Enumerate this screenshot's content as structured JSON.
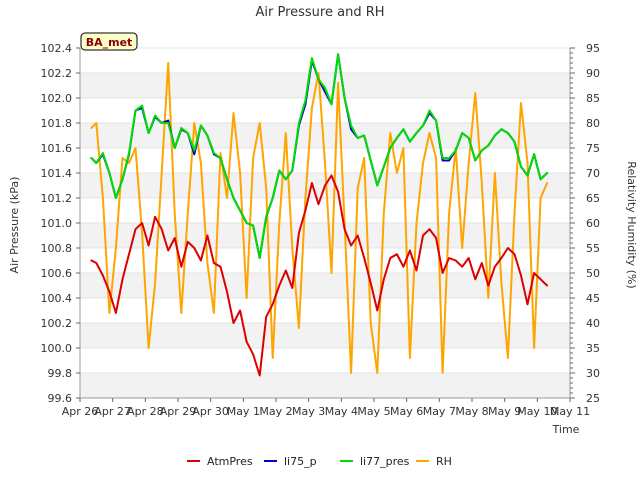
{
  "chart_data": {
    "type": "line",
    "title": "Air Pressure and RH",
    "xlabel": "Time",
    "ylabel": "Air Pressure (kPa)",
    "y2label": "Relativity Humidity (%)",
    "site_label": "BA_met",
    "x_ticks": [
      "Apr 26",
      "Apr 27",
      "Apr 28",
      "Apr 29",
      "Apr 30",
      "May 1",
      "May 2",
      "May 3",
      "May 4",
      "May 5",
      "May 6",
      "May 7",
      "May 8",
      "May 9",
      "May 10",
      "May 11"
    ],
    "ylim": [
      99.6,
      102.4
    ],
    "y_ticks": [
      "99.6",
      "99.8",
      "100.0",
      "100.2",
      "100.4",
      "100.6",
      "100.8",
      "101.0",
      "101.2",
      "101.4",
      "101.6",
      "101.8",
      "102.0",
      "102.2",
      "102.4"
    ],
    "y2lim": [
      25,
      95
    ],
    "y2_ticks": [
      "25",
      "30",
      "35",
      "40",
      "45",
      "50",
      "55",
      "60",
      "65",
      "70",
      "75",
      "80",
      "85",
      "90",
      "95"
    ],
    "grid": true,
    "legend_position": "bottom",
    "series": [
      {
        "name": "AtmPres",
        "axis": "left",
        "color": "#dd0000",
        "x": [
          0.35,
          0.5,
          0.7,
          0.9,
          1.1,
          1.3,
          1.5,
          1.7,
          1.9,
          2.1,
          2.3,
          2.5,
          2.7,
          2.9,
          3.1,
          3.3,
          3.5,
          3.7,
          3.9,
          4.1,
          4.3,
          4.5,
          4.7,
          4.9,
          5.1,
          5.3,
          5.5,
          5.7,
          5.9,
          6.1,
          6.3,
          6.5,
          6.7,
          6.9,
          7.1,
          7.3,
          7.5,
          7.7,
          7.9,
          8.1,
          8.3,
          8.5,
          8.7,
          8.9,
          9.1,
          9.3,
          9.5,
          9.7,
          9.9,
          10.1,
          10.3,
          10.5,
          10.7,
          10.9,
          11.1,
          11.3,
          11.5,
          11.7,
          11.9,
          12.1,
          12.3,
          12.5,
          12.7,
          12.9,
          13.1,
          13.3,
          13.5,
          13.7,
          13.9,
          14.1,
          14.3
        ],
        "y": [
          100.7,
          100.68,
          100.58,
          100.45,
          100.28,
          100.55,
          100.75,
          100.95,
          101.0,
          100.82,
          101.05,
          100.95,
          100.78,
          100.88,
          100.65,
          100.85,
          100.8,
          100.7,
          100.9,
          100.68,
          100.65,
          100.45,
          100.2,
          100.3,
          100.05,
          99.95,
          99.78,
          100.25,
          100.35,
          100.5,
          100.62,
          100.48,
          100.92,
          101.1,
          101.32,
          101.15,
          101.3,
          101.38,
          101.25,
          100.95,
          100.82,
          100.9,
          100.72,
          100.52,
          100.3,
          100.55,
          100.72,
          100.75,
          100.65,
          100.78,
          100.62,
          100.9,
          100.95,
          100.88,
          100.6,
          100.72,
          100.7,
          100.65,
          100.72,
          100.55,
          100.68,
          100.5,
          100.65,
          100.72,
          100.8,
          100.75,
          100.58,
          100.35,
          100.6,
          100.55,
          100.5
        ]
      },
      {
        "name": "li75_p",
        "axis": "left",
        "color": "#0000cc",
        "x": [
          0.35,
          0.5,
          0.7,
          0.9,
          1.1,
          1.3,
          1.5,
          1.7,
          1.9,
          2.1,
          2.3,
          2.5,
          2.7,
          2.9,
          3.1,
          3.3,
          3.5,
          3.7,
          3.9,
          4.1,
          4.3,
          4.5,
          4.7,
          4.9,
          5.1,
          5.3,
          5.5,
          5.7,
          5.9,
          6.1,
          6.3,
          6.5,
          6.7,
          6.9,
          7.1,
          7.3,
          7.5,
          7.7,
          7.9,
          8.1,
          8.3,
          8.5,
          8.7,
          8.9,
          9.1,
          9.3,
          9.5,
          9.7,
          9.9,
          10.1,
          10.3,
          10.5,
          10.7,
          10.9,
          11.1,
          11.3,
          11.5,
          11.7,
          11.9,
          12.1,
          12.3,
          12.5,
          12.7,
          12.9,
          13.1,
          13.3,
          13.5,
          13.7,
          13.9,
          14.1,
          14.3
        ],
        "y": [
          101.52,
          101.48,
          101.55,
          101.4,
          101.2,
          101.35,
          101.55,
          101.9,
          101.92,
          101.72,
          101.85,
          101.8,
          101.82,
          101.6,
          101.75,
          101.72,
          101.55,
          101.78,
          101.7,
          101.55,
          101.52,
          101.35,
          101.2,
          101.1,
          101.0,
          100.98,
          100.72,
          101.05,
          101.2,
          101.42,
          101.35,
          101.42,
          101.78,
          101.95,
          102.3,
          102.15,
          102.05,
          101.95,
          102.35,
          102.0,
          101.75,
          101.68,
          101.7,
          101.5,
          101.3,
          101.45,
          101.6,
          101.68,
          101.75,
          101.65,
          101.72,
          101.78,
          101.88,
          101.82,
          101.5,
          101.5,
          101.58,
          101.72,
          101.68,
          101.5,
          101.58,
          101.62,
          101.7,
          101.75,
          101.72,
          101.65,
          101.45,
          101.38,
          101.55,
          101.35,
          101.4
        ]
      },
      {
        "name": "li77_pres",
        "axis": "left",
        "color": "#00dd00",
        "x": [
          0.35,
          0.5,
          0.7,
          0.9,
          1.1,
          1.3,
          1.5,
          1.7,
          1.9,
          2.1,
          2.3,
          2.5,
          2.7,
          2.9,
          3.1,
          3.3,
          3.5,
          3.7,
          3.9,
          4.1,
          4.3,
          4.5,
          4.7,
          4.9,
          5.1,
          5.3,
          5.5,
          5.7,
          5.9,
          6.1,
          6.3,
          6.5,
          6.7,
          6.9,
          7.1,
          7.3,
          7.5,
          7.7,
          7.9,
          8.1,
          8.3,
          8.5,
          8.7,
          8.9,
          9.1,
          9.3,
          9.5,
          9.7,
          9.9,
          10.1,
          10.3,
          10.5,
          10.7,
          10.9,
          11.1,
          11.3,
          11.5,
          11.7,
          11.9,
          12.1,
          12.3,
          12.5,
          12.7,
          12.9,
          13.1,
          13.3,
          13.5,
          13.7,
          13.9,
          14.1,
          14.3
        ],
        "y": [
          101.52,
          101.48,
          101.56,
          101.4,
          101.2,
          101.35,
          101.56,
          101.9,
          101.94,
          101.72,
          101.86,
          101.8,
          101.8,
          101.6,
          101.76,
          101.72,
          101.58,
          101.78,
          101.7,
          101.56,
          101.52,
          101.35,
          101.2,
          101.1,
          101.0,
          100.98,
          100.72,
          101.05,
          101.2,
          101.42,
          101.35,
          101.42,
          101.8,
          101.98,
          102.32,
          102.15,
          102.08,
          101.95,
          102.35,
          102.0,
          101.78,
          101.68,
          101.7,
          101.5,
          101.3,
          101.45,
          101.6,
          101.68,
          101.75,
          101.65,
          101.72,
          101.78,
          101.9,
          101.82,
          101.52,
          101.52,
          101.58,
          101.72,
          101.68,
          101.5,
          101.58,
          101.62,
          101.7,
          101.75,
          101.72,
          101.65,
          101.45,
          101.38,
          101.55,
          101.35,
          101.4
        ]
      },
      {
        "name": "RH",
        "axis": "right",
        "color": "#ffa500",
        "x": [
          0.35,
          0.5,
          0.7,
          0.9,
          1.1,
          1.3,
          1.5,
          1.7,
          1.9,
          2.1,
          2.3,
          2.5,
          2.7,
          2.9,
          3.1,
          3.3,
          3.5,
          3.7,
          3.9,
          4.1,
          4.3,
          4.5,
          4.7,
          4.9,
          5.1,
          5.3,
          5.5,
          5.7,
          5.9,
          6.1,
          6.3,
          6.5,
          6.7,
          6.9,
          7.1,
          7.3,
          7.5,
          7.7,
          7.9,
          8.1,
          8.3,
          8.5,
          8.7,
          8.9,
          9.1,
          9.3,
          9.5,
          9.7,
          9.9,
          10.1,
          10.3,
          10.5,
          10.7,
          10.9,
          11.1,
          11.3,
          11.5,
          11.7,
          11.9,
          12.1,
          12.3,
          12.5,
          12.7,
          12.9,
          13.1,
          13.3,
          13.5,
          13.7,
          13.9,
          14.1,
          14.3
        ],
        "y": [
          79,
          80,
          65,
          42,
          55,
          73,
          72,
          75,
          58,
          35,
          48,
          70,
          92,
          62,
          42,
          62,
          80,
          72,
          52,
          42,
          74,
          65,
          82,
          70,
          45,
          73,
          80,
          67,
          33,
          60,
          78,
          55,
          39,
          65,
          83,
          90,
          72,
          50,
          88,
          60,
          30,
          67,
          73,
          40,
          30,
          62,
          78,
          70,
          75,
          33,
          60,
          72,
          78,
          73,
          30,
          62,
          75,
          55,
          72,
          86,
          68,
          45,
          70,
          48,
          33,
          62,
          84,
          72,
          35,
          65,
          68
        ]
      }
    ]
  }
}
